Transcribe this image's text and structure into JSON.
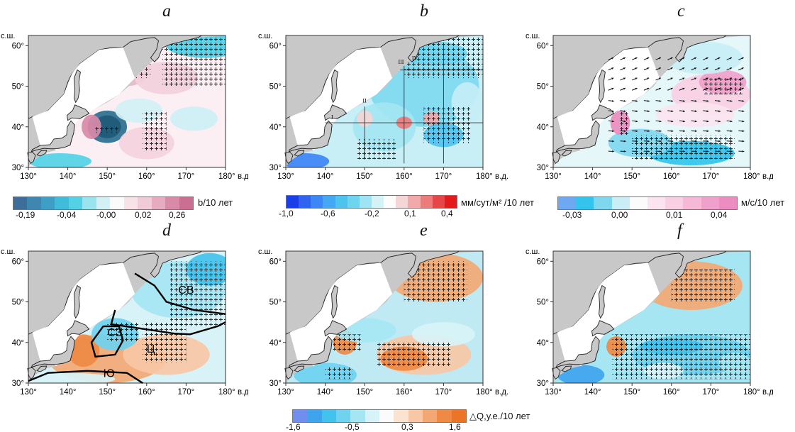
{
  "panel_labels": [
    "a",
    "b",
    "c",
    "d",
    "e",
    "f"
  ],
  "axes": {
    "lat_title": "с.ш.",
    "lat_ticks": [
      "60°",
      "50°",
      "40°",
      "30°"
    ],
    "lon_ticks": [
      "130°",
      "140°",
      "150°",
      "160°",
      "170°"
    ],
    "lon_last": "180° в.д.",
    "lon_ticks_d": [
      "130°",
      "140°",
      "150°",
      "160°",
      "170°"
    ]
  },
  "b_sections": [
    "I",
    "II",
    "III",
    "IV"
  ],
  "regions": {
    "ne": "СВ",
    "nw": "СЗ",
    "center": "Ц",
    "south": "Ю"
  },
  "colorbars": {
    "a": {
      "ticks": [
        "-0,19",
        "-0,04",
        "-0,00",
        "0,02",
        "0,26"
      ],
      "unit": "b/10 лет",
      "colors": [
        "#3d6e9a",
        "#3f86b0",
        "#3d9fc6",
        "#3fbcd9",
        "#53d2e6",
        "#99e4ee",
        "#d3f1f5",
        "#fbfbfb",
        "#f7e2e7",
        "#f0cbd7",
        "#e6abc0",
        "#d98aa7",
        "#cc6e92"
      ]
    },
    "b": {
      "ticks": [
        "-1,0",
        "-0,6",
        "-0,2",
        "0,1",
        "0,4"
      ],
      "unit": "мм/сут/м² /10 лет",
      "colors": [
        "#1a3fe6",
        "#2f63f0",
        "#3d86f5",
        "#44a8f3",
        "#4fc3ee",
        "#6fd5ef",
        "#9fe4f2",
        "#d3f3f7",
        "#fcfcfc",
        "#f5d6d6",
        "#f1a9a9",
        "#ec7b7b",
        "#e74646",
        "#e41a1a"
      ]
    },
    "c": {
      "ticks": [
        "-0,03",
        "0,00",
        "0,01",
        "0,04"
      ],
      "unit": "м/с/10 лет",
      "colors": [
        "#6ea7f2",
        "#33c3ec",
        "#7fd7ef",
        "#c9eef6",
        "#fbfbfb",
        "#fbe4ef",
        "#f8cfe3",
        "#f5b8d7",
        "#f0a1cb",
        "#ec8cc0"
      ]
    },
    "def": {
      "ticks": [
        "-1,6",
        "-0,5",
        "0,3",
        "1,6"
      ],
      "unit": "△Q,у.е./10 лет",
      "colors": [
        "#6f8ef0",
        "#3fa4ee",
        "#42c2ec",
        "#6fd3ef",
        "#a6e6f3",
        "#d8f3f7",
        "#fbfbfb",
        "#fbe3d2",
        "#f8c7a6",
        "#f3a873",
        "#ee8a45",
        "#ec7426"
      ]
    }
  }
}
